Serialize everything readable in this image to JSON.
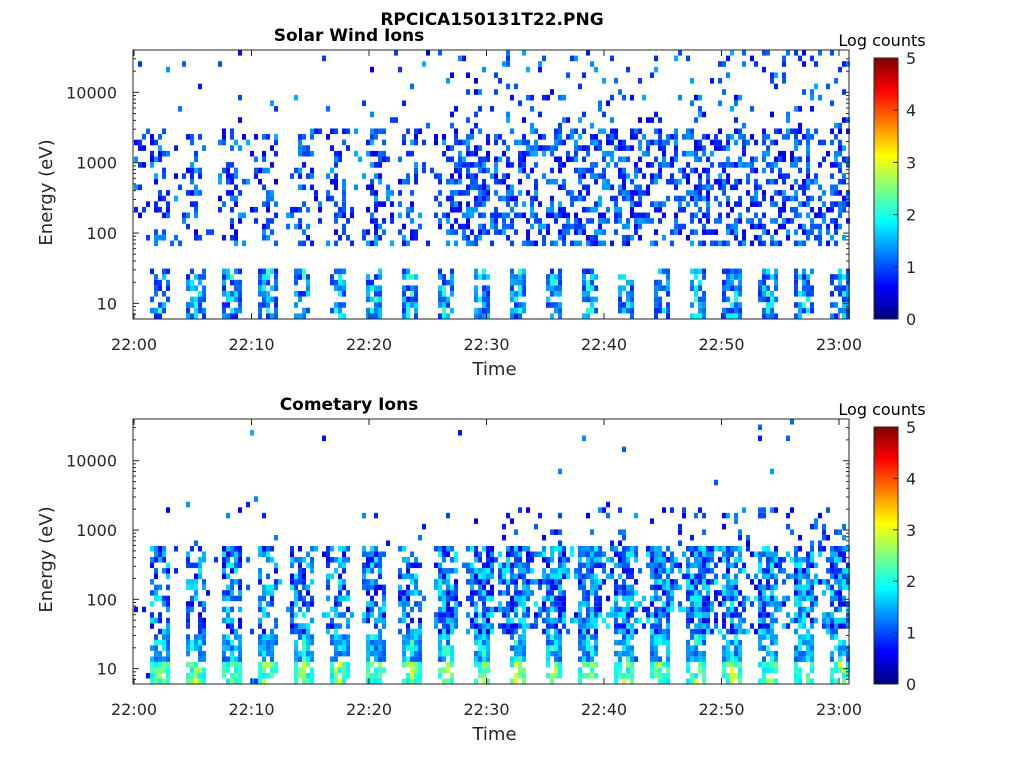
{
  "figure": {
    "title": "RPCICA150131T22.PNG"
  },
  "colors": {
    "colormap": [
      "#00007f",
      "#0000ff",
      "#007fff",
      "#00ffff",
      "#7fff7f",
      "#ffff00",
      "#ff7f00",
      "#ff0000",
      "#7f0000"
    ],
    "background": "#ffffff",
    "axis": "#262626"
  },
  "chart_data": [
    {
      "type": "heatmap",
      "title": "Solar Wind Ions",
      "xlabel": "Time",
      "ylabel": "Energy (eV)",
      "xlim": [
        "22:00",
        "23:00"
      ],
      "ylim": [
        6,
        40000
      ],
      "yscale": "log",
      "xticks": [
        "22:00",
        "22:10",
        "22:20",
        "22:30",
        "22:40",
        "22:50",
        "23:00"
      ],
      "yticks": [
        {
          "value": 10,
          "label": "10"
        },
        {
          "value": 100,
          "label": "100"
        },
        {
          "value": 1000,
          "label": "1000"
        },
        {
          "value": 10000,
          "label": "10000"
        }
      ],
      "colorbar": {
        "label": "Log counts",
        "range": [
          0,
          5
        ],
        "ticks": [
          "0",
          "1",
          "2",
          "3",
          "4",
          "5"
        ]
      }
    },
    {
      "type": "heatmap",
      "title": "Cometary Ions",
      "xlabel": "Time",
      "ylabel": "Energy (eV)",
      "xlim": [
        "22:00",
        "23:00"
      ],
      "ylim": [
        6,
        40000
      ],
      "yscale": "log",
      "xticks": [
        "22:00",
        "22:10",
        "22:20",
        "22:30",
        "22:40",
        "22:50",
        "23:00"
      ],
      "yticks": [
        {
          "value": 10,
          "label": "10"
        },
        {
          "value": 100,
          "label": "100"
        },
        {
          "value": 1000,
          "label": "1000"
        },
        {
          "value": 10000,
          "label": "10000"
        }
      ],
      "colorbar": {
        "label": "Log counts",
        "range": [
          0,
          5
        ],
        "ticks": [
          "0",
          "1",
          "2",
          "3",
          "4",
          "5"
        ]
      }
    }
  ]
}
